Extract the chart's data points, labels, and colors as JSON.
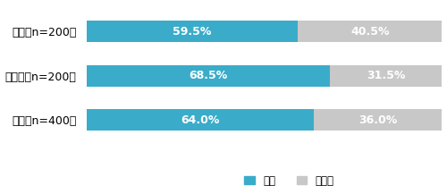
{
  "categories": [
    "地方（n=200）",
    "都市部（n=200）",
    "全体（n=400）"
  ],
  "values_iru": [
    59.5,
    68.5,
    64.0
  ],
  "values_inai": [
    40.5,
    31.5,
    36.0
  ],
  "color_iru": "#3aacca",
  "color_inai": "#c8c8c8",
  "label_iru": "いる",
  "label_inai": "いない",
  "text_color": "#ffffff",
  "bar_height": 0.48,
  "figsize": [
    5.0,
    2.17
  ],
  "dpi": 100
}
